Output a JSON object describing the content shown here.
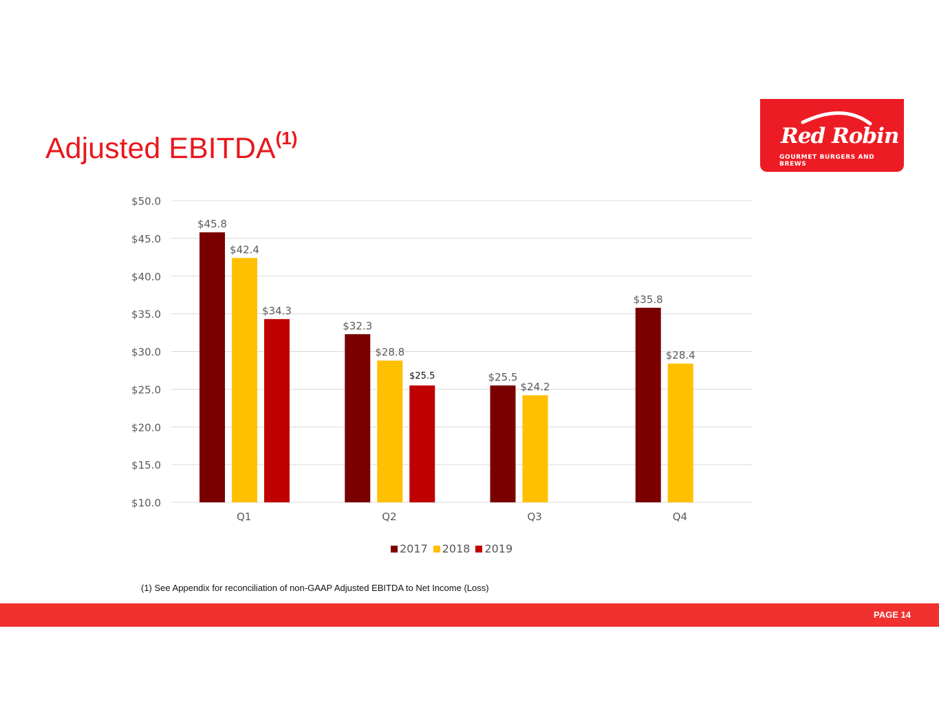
{
  "slide": {
    "title": "Adjusted EBITDA",
    "title_superscript": "(1)",
    "footnote": "(1) See Appendix for reconciliation of non-GAAP Adjusted EBITDA to Net Income (Loss)",
    "page_label": "PAGE 14"
  },
  "logo": {
    "brand": "Red Robin",
    "tagline": "GOURMET BURGERS AND BREWS"
  },
  "colors": {
    "title": "#e8181d",
    "footer": "#f0312d",
    "logo_bg": "#ed1c24",
    "series_2017": "#7a0000",
    "series_2018": "#ffc000",
    "series_2019": "#c00000",
    "grid": "#d9d9d9",
    "axis_text": "#595959"
  },
  "chart_data": {
    "type": "bar",
    "title": "",
    "xlabel": "",
    "ylabel": "",
    "categories": [
      "Q1",
      "Q2",
      "Q3",
      "Q4"
    ],
    "ylim": [
      10,
      50
    ],
    "yticks": [
      10,
      15,
      20,
      25,
      30,
      35,
      40,
      45,
      50
    ],
    "ytick_labels": [
      "$10.0",
      "$15.0",
      "$20.0",
      "$25.0",
      "$30.0",
      "$35.0",
      "$40.0",
      "$45.0",
      "$50.0"
    ],
    "grid": true,
    "legend_position": "bottom",
    "series": [
      {
        "name": "2017",
        "color": "#7a0000",
        "values": [
          45.8,
          32.3,
          25.5,
          35.8
        ],
        "labels": [
          "$45.8",
          "$32.3",
          "$25.5",
          "$35.8"
        ]
      },
      {
        "name": "2018",
        "color": "#ffc000",
        "values": [
          42.4,
          28.8,
          24.2,
          28.4
        ],
        "labels": [
          "$42.4",
          "$28.8",
          "$24.2",
          "$28.4"
        ]
      },
      {
        "name": "2019",
        "color": "#c00000",
        "values": [
          34.3,
          25.5,
          null,
          null
        ],
        "labels": [
          "$34.3",
          "$25.5",
          null,
          null
        ]
      }
    ]
  }
}
